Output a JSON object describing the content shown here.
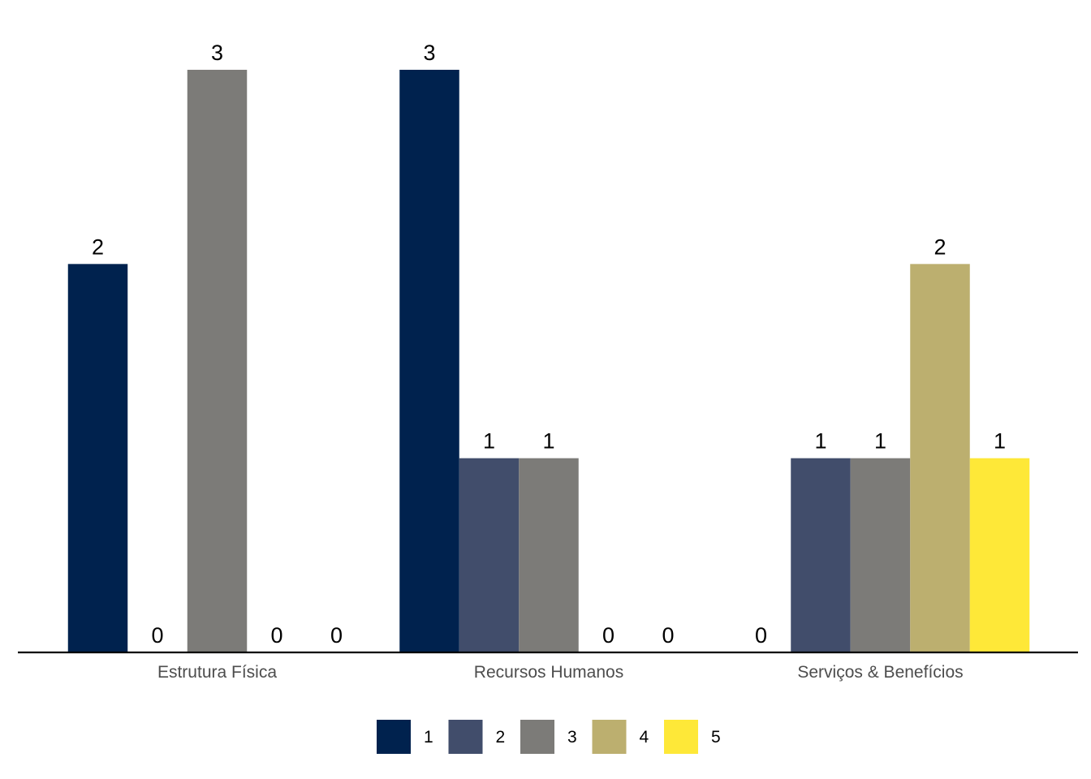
{
  "chart_data": {
    "type": "bar",
    "title": "",
    "xlabel": "",
    "ylabel": "",
    "categories": [
      "Estrutura Física",
      "Recursos Humanos",
      "Serviços & Benefícios"
    ],
    "series": [
      {
        "name": "1",
        "color": "#00224e",
        "values": [
          2,
          3,
          0
        ]
      },
      {
        "name": "2",
        "color": "#414d6b",
        "values": [
          0,
          1,
          1
        ]
      },
      {
        "name": "3",
        "color": "#7c7b78",
        "values": [
          3,
          1,
          1
        ]
      },
      {
        "name": "4",
        "color": "#bcaf6f",
        "values": [
          0,
          0,
          2
        ]
      },
      {
        "name": "5",
        "color": "#fee838",
        "values": [
          0,
          0,
          1
        ]
      }
    ],
    "ylim": [
      0,
      3
    ],
    "grid": false,
    "data_labels": true,
    "legend_position": "bottom"
  }
}
